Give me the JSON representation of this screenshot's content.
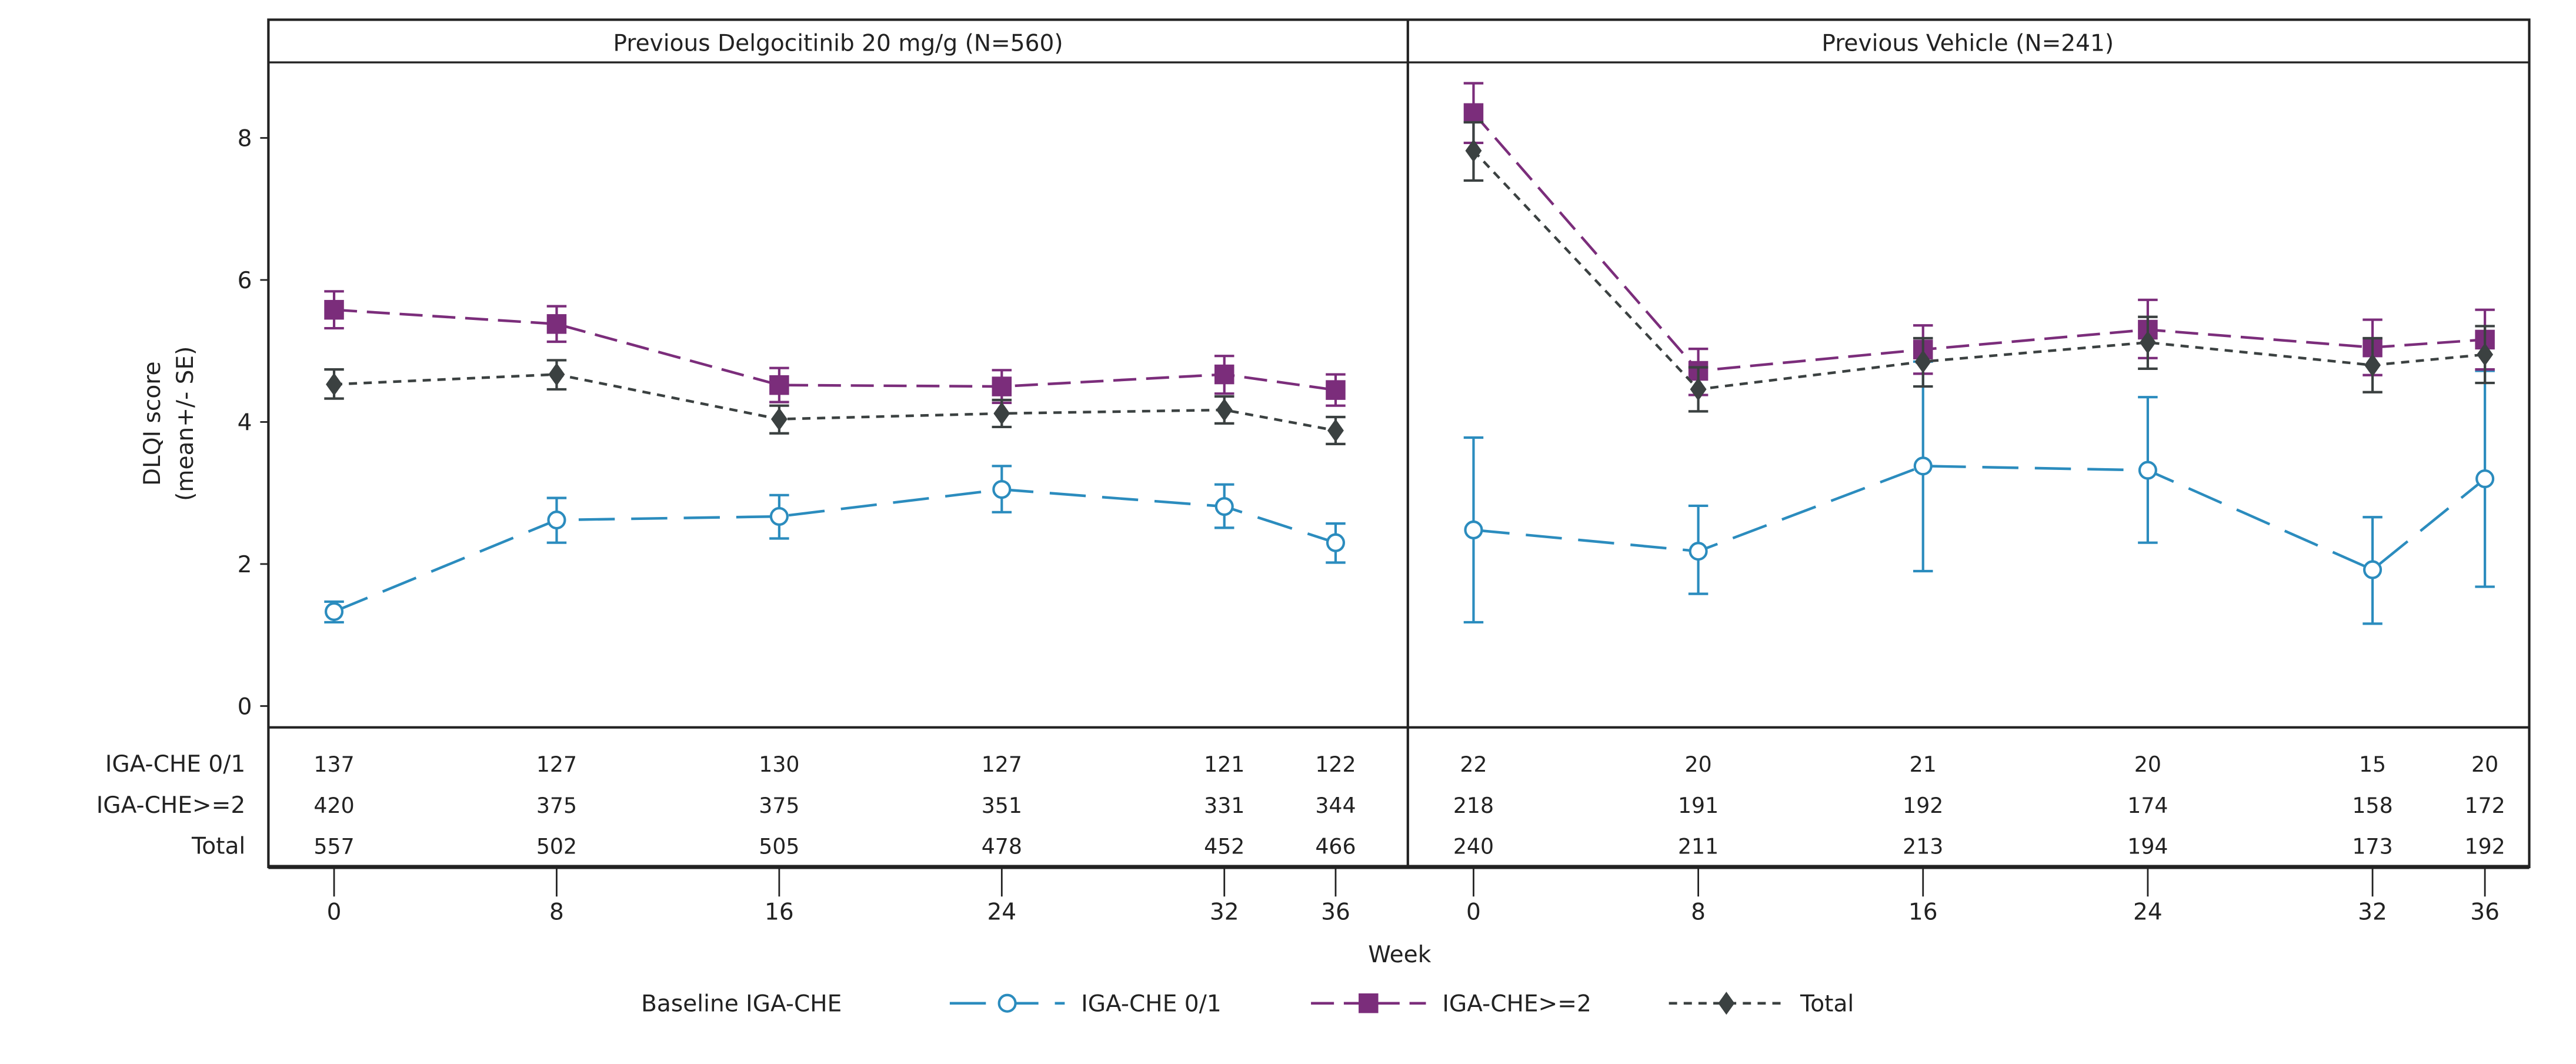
{
  "chart_data": {
    "type": "line",
    "ylabel_line1": "DLQI score",
    "ylabel_line2": "(mean+/- SE)",
    "xlabel": "Week",
    "ylim": [
      0,
      9
    ],
    "yticks": [
      0,
      2,
      4,
      6,
      8
    ],
    "xticks": [
      0,
      8,
      16,
      24,
      32,
      36
    ],
    "grid": false,
    "legend_title": "Baseline IGA-CHE",
    "legend_position": "bottom",
    "series_styles": [
      {
        "name": "IGA-CHE 0/1",
        "color": "#2b8cbe",
        "marker": "open-circle",
        "dash": "long-dash"
      },
      {
        "name": "IGA-CHE>=2",
        "color": "#7b2d7b",
        "marker": "square",
        "dash": "medium-dash"
      },
      {
        "name": "Total",
        "color": "#3b4141",
        "marker": "diamond",
        "dash": "short-dash"
      }
    ],
    "panels": [
      {
        "title": "Previous Delgocitinib 20 mg/g (N=560)",
        "x": [
          0,
          8,
          16,
          24,
          32,
          36
        ],
        "series": [
          {
            "name": "IGA-CHE 0/1",
            "mean": [
              1.33,
              2.62,
              2.67,
              3.05,
              2.81,
              2.3
            ],
            "lower": [
              1.18,
              2.3,
              2.36,
              2.73,
              2.51,
              2.02
            ],
            "upper": [
              1.47,
              2.93,
              2.97,
              3.38,
              3.12,
              2.57
            ]
          },
          {
            "name": "IGA-CHE>=2",
            "mean": [
              5.58,
              5.38,
              4.52,
              4.5,
              4.67,
              4.45
            ],
            "lower": [
              5.32,
              5.13,
              4.28,
              4.27,
              4.4,
              4.23
            ],
            "upper": [
              5.84,
              5.63,
              4.76,
              4.73,
              4.93,
              4.67
            ]
          },
          {
            "name": "Total",
            "mean": [
              4.53,
              4.67,
              4.04,
              4.12,
              4.17,
              3.88
            ],
            "lower": [
              4.33,
              4.46,
              3.84,
              3.93,
              3.98,
              3.69
            ],
            "upper": [
              4.74,
              4.87,
              4.23,
              4.31,
              4.36,
              4.07
            ]
          }
        ],
        "n_at_risk": [
          {
            "label": "IGA-CHE 0/1",
            "values": [
              "137",
              "127",
              "130",
              "127",
              "121",
              "122"
            ]
          },
          {
            "label": "IGA-CHE>=2",
            "values": [
              "420",
              "375",
              "375",
              "351",
              "331",
              "344"
            ]
          },
          {
            "label": "Total",
            "values": [
              "557",
              "502",
              "505",
              "478",
              "452",
              "466"
            ]
          }
        ]
      },
      {
        "title": "Previous Vehicle (N=241)",
        "x": [
          0,
          8,
          16,
          24,
          32,
          36
        ],
        "series": [
          {
            "name": "IGA-CHE 0/1",
            "mean": [
              2.48,
              2.18,
              3.38,
              3.32,
              1.92,
              3.2
            ],
            "lower": [
              1.18,
              1.58,
              1.9,
              2.3,
              1.16,
              1.68
            ],
            "upper": [
              3.78,
              2.82,
              4.85,
              4.35,
              2.66,
              4.72
            ]
          },
          {
            "name": "IGA-CHE>=2",
            "mean": [
              8.35,
              4.72,
              5.02,
              5.3,
              5.05,
              5.16
            ],
            "lower": [
              7.93,
              4.38,
              4.68,
              4.9,
              4.66,
              4.74
            ],
            "upper": [
              8.77,
              5.03,
              5.36,
              5.72,
              5.44,
              5.58
            ]
          },
          {
            "name": "Total",
            "mean": [
              7.82,
              4.46,
              4.85,
              5.12,
              4.8,
              4.95
            ],
            "lower": [
              7.4,
              4.15,
              4.5,
              4.75,
              4.42,
              4.55
            ],
            "upper": [
              8.22,
              4.77,
              5.18,
              5.48,
              5.18,
              5.35
            ]
          }
        ],
        "n_at_risk": [
          {
            "label": "IGA-CHE 0/1",
            "values": [
              "22",
              "20",
              "21",
              "20",
              "15",
              "20"
            ]
          },
          {
            "label": "IGA-CHE>=2",
            "values": [
              "218",
              "191",
              "192",
              "174",
              "158",
              "172"
            ]
          },
          {
            "label": "Total",
            "values": [
              "240",
              "211",
              "213",
              "194",
              "173",
              "192"
            ]
          }
        ]
      }
    ]
  }
}
